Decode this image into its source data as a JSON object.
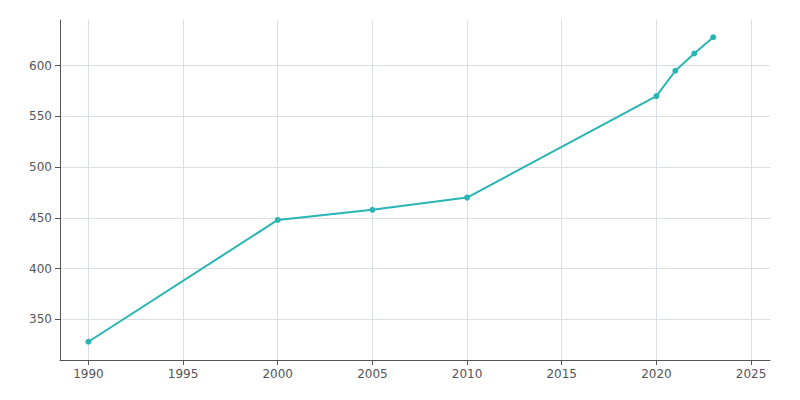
{
  "chart_data": {
    "type": "line",
    "x": [
      1990,
      2000,
      2005,
      2010,
      2020,
      2021,
      2022,
      2023
    ],
    "values": [
      328,
      448,
      458,
      470,
      570,
      595,
      612,
      628
    ],
    "color": "#2ab5b5",
    "marker": "circle",
    "xlim": [
      1988.5,
      2026
    ],
    "ylim": [
      310,
      645
    ],
    "xticks": [
      1990,
      1995,
      2000,
      2005,
      2010,
      2015,
      2020,
      2025
    ],
    "yticks": [
      350,
      400,
      450,
      500,
      550,
      600
    ],
    "grid": true
  }
}
